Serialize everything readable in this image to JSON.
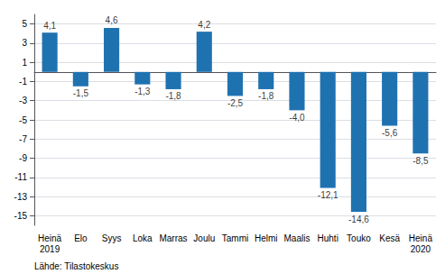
{
  "chart_data": {
    "type": "bar",
    "categories": [
      "Heinä\n2019",
      "Elo",
      "Syys",
      "Loka",
      "Marras",
      "Joulu",
      "Tammi",
      "Helmi",
      "Maalis",
      "Huhti",
      "Touko",
      "Kesä",
      "Heinä\n2020"
    ],
    "values": [
      4.1,
      -1.5,
      4.6,
      -1.3,
      -1.8,
      4.2,
      -2.5,
      -1.8,
      -4.0,
      -12.1,
      -14.6,
      -5.6,
      -8.5
    ],
    "value_labels": [
      "4,1",
      "-1,5",
      "4,6",
      "-1,3",
      "-1,8",
      "4,2",
      "-2,5",
      "-1,8",
      "-4,0",
      "-12,1",
      "-14,6",
      "-5,6",
      "-8,5"
    ],
    "data_labels": true,
    "color": "#1F72B0",
    "ylim": [
      -16,
      6
    ],
    "yticks": [
      5,
      3,
      1,
      -1,
      -3,
      -5,
      -7,
      -9,
      -11,
      -13,
      -15
    ],
    "grid": true,
    "annotation": "Lähde: Tilastokeskus"
  }
}
